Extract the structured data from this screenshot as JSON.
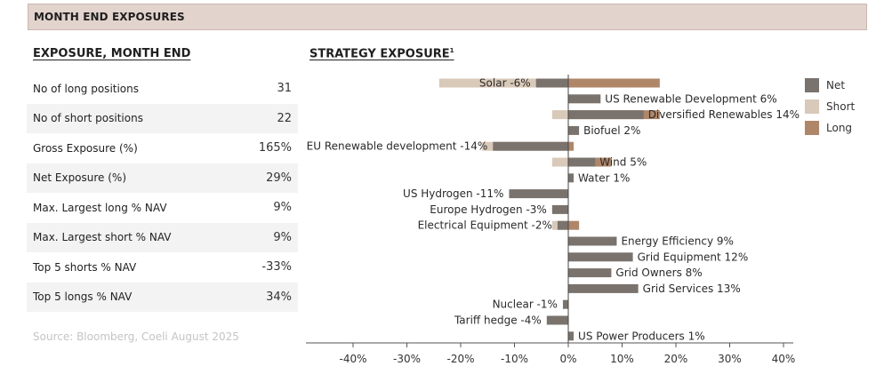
{
  "banner": {
    "title": "MONTH END EXPOSURES"
  },
  "exposure": {
    "title": "EXPOSURE, MONTH END",
    "rows": [
      {
        "label": "No of long positions",
        "value": "31"
      },
      {
        "label": "No of short positions",
        "value": "22"
      },
      {
        "label": "Gross Exposure (%)",
        "value": "165%"
      },
      {
        "label": "Net Exposure (%)",
        "value": "29%"
      },
      {
        "label": "Max. Largest long % NAV",
        "value": "9%"
      },
      {
        "label": "Max. Largest short % NAV",
        "value": "9%"
      },
      {
        "label": "Top 5 shorts % NAV",
        "value": "-33%"
      },
      {
        "label": "Top 5 longs % NAV",
        "value": "34%"
      }
    ],
    "source": "Source: Bloomberg, Coeli August 2025"
  },
  "strategy": {
    "title": "STRATEGY EXPOSURE",
    "footnote_mark": "1"
  },
  "legend": [
    {
      "name": "Net",
      "color": "#7a736d"
    },
    {
      "name": "Short",
      "color": "#d9c9b8"
    },
    {
      "name": "Long",
      "color": "#b08669"
    }
  ],
  "chart_data": {
    "type": "bar",
    "orientation": "horizontal",
    "title": "STRATEGY EXPOSURE",
    "xlim": [
      -50,
      42
    ],
    "xticks": [
      -40,
      -30,
      -20,
      -10,
      0,
      10,
      20,
      30,
      40
    ],
    "xtick_labels": [
      "-40%",
      "-30%",
      "-20%",
      "-10%",
      "0%",
      "10%",
      "20%",
      "30%",
      "40%"
    ],
    "categories": [
      "Solar",
      "US Renewable Development",
      "Diversified Renewables",
      "Biofuel",
      "EU Renewable development",
      "Wind",
      "Water",
      "US Hydrogen",
      "Europe Hydrogen",
      "Electrical Equipment",
      "Energy Efficiency",
      "Grid Equipment",
      "Grid Owners",
      "Grid Services",
      "Nuclear",
      "Tariff hedge",
      "US Power Producers"
    ],
    "labels": [
      "Solar  -6%",
      "US Renewable Development  6%",
      "Diversified Renewables  14%",
      "Biofuel  2%",
      "EU Renewable development  -14%",
      "Wind  5%",
      "Water  1%",
      "US Hydrogen  -11%",
      "Europe Hydrogen  -3%",
      "Electrical Equipment  -2%",
      "Energy Efficiency  9%",
      "Grid Equipment  12%",
      "Grid Owners  8%",
      "Grid Services  13%",
      "Nuclear  -1%",
      "Tariff hedge  -4%",
      "US Power Producers  1%"
    ],
    "series": [
      {
        "name": "Net",
        "values": [
          -6,
          6,
          14,
          2,
          -14,
          5,
          1,
          -11,
          -3,
          -2,
          9,
          12,
          8,
          13,
          -1,
          -4,
          1
        ]
      },
      {
        "name": "Short",
        "values": [
          -24,
          0,
          -3,
          0,
          -16,
          -3,
          0,
          0,
          0,
          -3,
          0,
          0,
          0,
          0,
          0,
          0,
          0
        ]
      },
      {
        "name": "Long",
        "values": [
          17,
          0,
          17,
          0,
          1,
          8,
          0,
          0,
          0,
          2,
          0,
          0,
          0,
          0,
          0,
          0,
          0
        ]
      }
    ]
  }
}
